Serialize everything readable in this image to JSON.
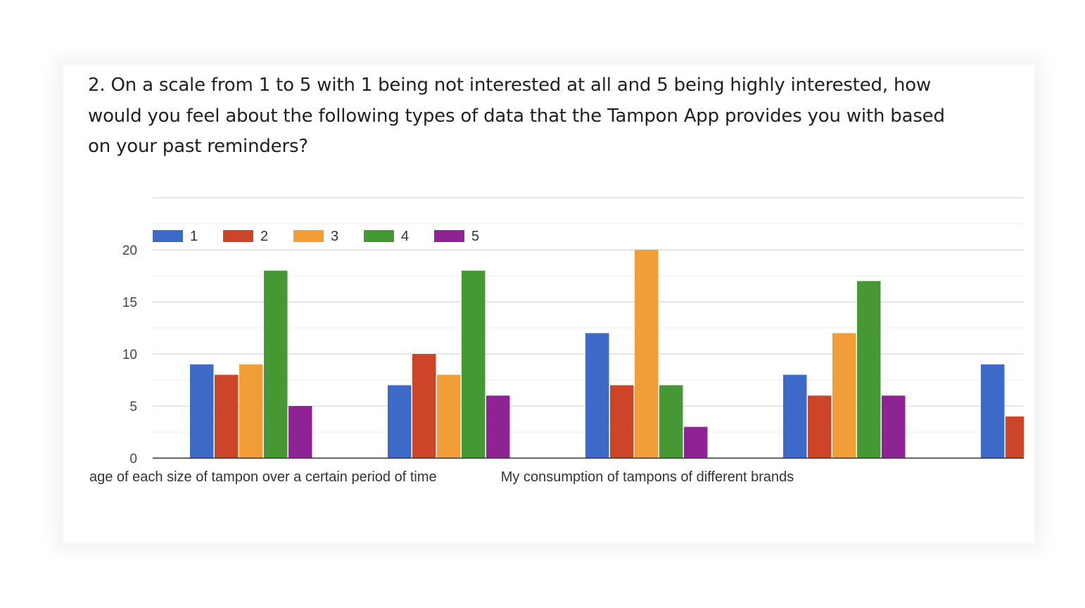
{
  "question": {
    "title": "2. On a scale from 1 to 5 with 1 being not interested at all and 5 being highly interested, how would you feel about the following types of data that the Tampon App provides you with based on your past reminders?"
  },
  "chart_data": {
    "type": "bar",
    "title": "",
    "xlabel": "",
    "ylabel": "",
    "ylim": [
      0,
      20
    ],
    "yticks": [
      0,
      5,
      10,
      15,
      20
    ],
    "grid": true,
    "legend_position": "top-left",
    "categories": [
      "My usage of each size of tampon over a certain period of time",
      "My consumption of tampons of different brands",
      "",
      "",
      ""
    ],
    "visible_category_labels": [
      "age of each size of tampon over a certain period of time",
      "My consumption of tampons of different brands"
    ],
    "series": [
      {
        "name": "1",
        "color": "#3d69c9",
        "values": [
          9,
          7,
          12,
          8,
          9
        ]
      },
      {
        "name": "2",
        "color": "#cc4528",
        "values": [
          8,
          10,
          7,
          6,
          4
        ]
      },
      {
        "name": "3",
        "color": "#f29e38",
        "values": [
          9,
          8,
          20,
          12,
          null
        ]
      },
      {
        "name": "4",
        "color": "#469834",
        "values": [
          18,
          18,
          7,
          17,
          null
        ]
      },
      {
        "name": "5",
        "color": "#8e2394",
        "values": [
          5,
          6,
          3,
          6,
          null
        ]
      }
    ]
  }
}
